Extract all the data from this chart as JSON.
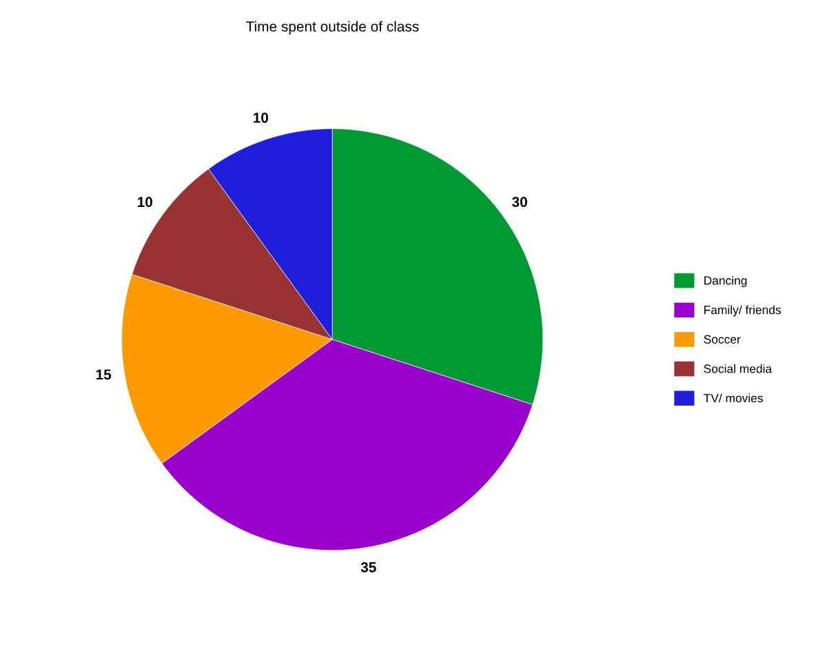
{
  "chart_data": {
    "type": "pie",
    "title": "Time spent outside of class",
    "categories": [
      "Dancing",
      "Family/ friends",
      "Soccer",
      "Social media",
      "TV/ movies"
    ],
    "values": [
      30,
      35,
      15,
      10,
      10
    ],
    "colors": [
      "#009933",
      "#9900cc",
      "#ff9900",
      "#993333",
      "#1e1edb"
    ],
    "data_labels": true,
    "legend": "right"
  }
}
